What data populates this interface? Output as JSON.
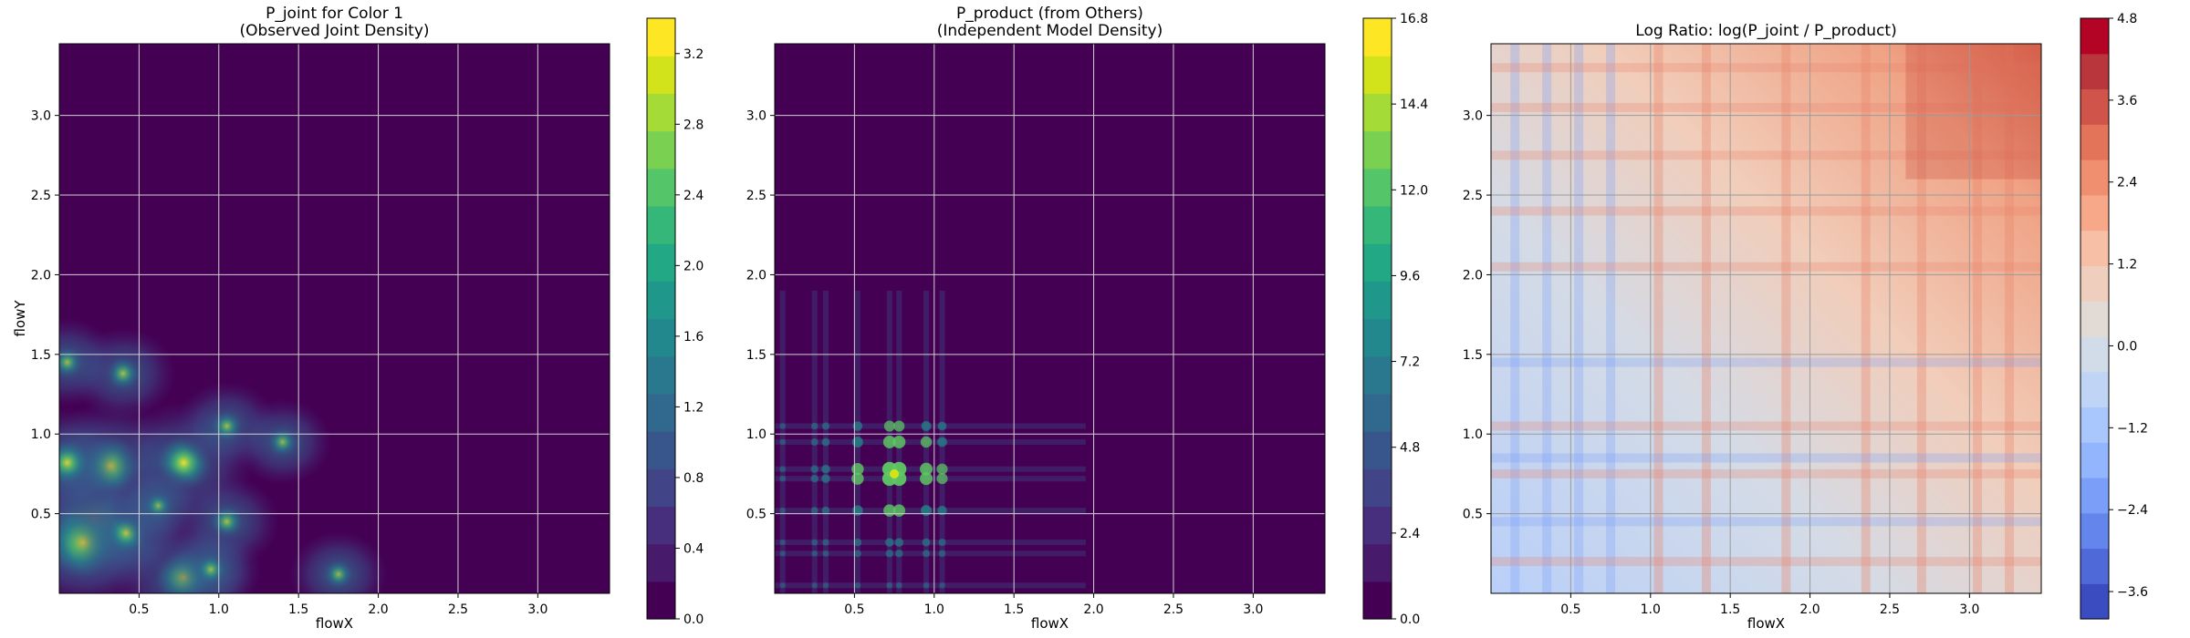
{
  "chart_data": [
    {
      "type": "heatmap",
      "title_line1": "P_joint for Color 1",
      "title_line2": "(Observed Joint Density)",
      "xlabel": "flowX",
      "ylabel": "flowY",
      "xlim": [
        0.0,
        3.45
      ],
      "ylim": [
        0.0,
        3.45
      ],
      "xticks": [
        "0.5",
        "1.0",
        "1.5",
        "2.0",
        "2.5",
        "3.0"
      ],
      "yticks": [
        "0.5",
        "1.0",
        "1.5",
        "2.0",
        "2.5",
        "3.0"
      ],
      "grid": true,
      "colormap": "viridis",
      "colorbar": {
        "range": [
          0.0,
          3.4
        ],
        "ticks": [
          "0.0",
          "0.4",
          "0.8",
          "1.2",
          "1.6",
          "2.0",
          "2.4",
          "2.8",
          "3.2"
        ]
      },
      "hotspots": [
        {
          "x": 0.22,
          "y": 0.45,
          "value": 3.0
        },
        {
          "x": 0.15,
          "y": 0.32,
          "value": 2.6
        },
        {
          "x": 0.32,
          "y": 0.8,
          "value": 2.2
        },
        {
          "x": 0.78,
          "y": 0.82,
          "value": 2.0
        },
        {
          "x": 0.78,
          "y": 0.1,
          "value": 2.0
        },
        {
          "x": 0.05,
          "y": 0.82,
          "value": 1.6
        },
        {
          "x": 0.42,
          "y": 0.38,
          "value": 1.4
        },
        {
          "x": 0.4,
          "y": 1.38,
          "value": 1.0
        },
        {
          "x": 1.05,
          "y": 0.45,
          "value": 1.0
        },
        {
          "x": 1.05,
          "y": 1.05,
          "value": 0.9
        },
        {
          "x": 1.4,
          "y": 0.95,
          "value": 0.8
        },
        {
          "x": 1.75,
          "y": 0.12,
          "value": 0.8
        },
        {
          "x": 0.05,
          "y": 1.45,
          "value": 0.9
        },
        {
          "x": 0.95,
          "y": 0.15,
          "value": 0.9
        },
        {
          "x": 0.62,
          "y": 0.55,
          "value": 0.7
        }
      ]
    },
    {
      "type": "heatmap",
      "title_line1": "P_product (from Others)",
      "title_line2": "(Independent Model Density)",
      "xlabel": "flowX",
      "ylabel": "",
      "xlim": [
        0.0,
        3.45
      ],
      "ylim": [
        0.0,
        3.45
      ],
      "xticks": [
        "0.5",
        "1.0",
        "1.5",
        "2.0",
        "2.5",
        "3.0"
      ],
      "yticks": [
        "0.5",
        "1.0",
        "1.5",
        "2.0",
        "2.5",
        "3.0"
      ],
      "grid": true,
      "colormap": "viridis",
      "colorbar": {
        "range": [
          0.0,
          16.8
        ],
        "ticks": [
          "0.0",
          "2.4",
          "4.8",
          "7.2",
          "9.6",
          "12.0",
          "14.4",
          "16.8"
        ]
      },
      "marginal_peaks": [
        0.05,
        0.25,
        0.32,
        0.52,
        0.72,
        0.78,
        0.95,
        1.05
      ],
      "peak": {
        "x": 0.75,
        "y": 0.75,
        "value": 16.0
      }
    },
    {
      "type": "heatmap",
      "title": "Log Ratio: log(P_joint / P_product)",
      "xlabel": "flowX",
      "ylabel": "",
      "xlim": [
        0.0,
        3.45
      ],
      "ylim": [
        0.0,
        3.45
      ],
      "xticks": [
        "0.5",
        "1.0",
        "1.5",
        "2.0",
        "2.5",
        "3.0"
      ],
      "yticks": [
        "0.5",
        "1.0",
        "1.5",
        "2.0",
        "2.5",
        "3.0"
      ],
      "grid": true,
      "colormap": "coolwarm",
      "colorbar": {
        "range": [
          -4.0,
          4.8
        ],
        "ticks": [
          "4.8",
          "3.6",
          "2.4",
          "1.2",
          "0.0",
          "−1.2",
          "−2.4",
          "−3.6"
        ]
      }
    }
  ]
}
